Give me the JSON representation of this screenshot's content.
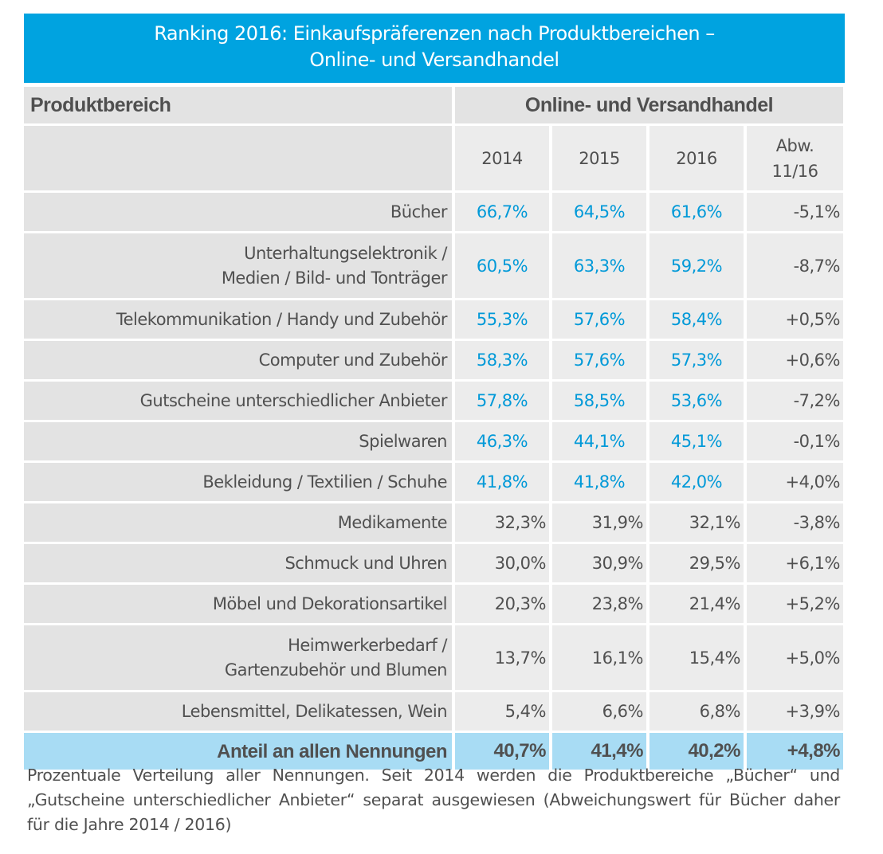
{
  "title_line1": "Ranking 2016: Einkaufspräferenzen nach Produktbereichen –",
  "title_line2": "Online- und Versandhandel",
  "colors": {
    "header": "#00a3e0",
    "highlight_text": "#0099d8",
    "total_row": "#a8dcf4",
    "cell": "#ececec"
  },
  "chart_data": {
    "type": "table",
    "header_left": "Produktbereich",
    "header_group": "Online- und Versandhandel",
    "columns": [
      "2014",
      "2015",
      "2016",
      "Abw. 11/16"
    ],
    "rows": [
      {
        "label": "Bücher",
        "values": [
          "66,7%",
          "64,5%",
          "61,6%",
          "-5,1%"
        ],
        "highlight": true
      },
      {
        "label": "Unterhaltungselektronik / Medien / Bild- und Tonträger",
        "line1": "Unterhaltungselektronik /",
        "line2": "Medien / Bild- und Tonträger",
        "values": [
          "60,5%",
          "63,3%",
          "59,2%",
          "-8,7%"
        ],
        "highlight": true
      },
      {
        "label": "Telekommunikation / Handy und Zubehör",
        "values": [
          "55,3%",
          "57,6%",
          "58,4%",
          "+0,5%"
        ],
        "highlight": true
      },
      {
        "label": "Computer und Zubehör",
        "values": [
          "58,3%",
          "57,6%",
          "57,3%",
          "+0,6%"
        ],
        "highlight": true
      },
      {
        "label": "Gutscheine unterschiedlicher Anbieter",
        "values": [
          "57,8%",
          "58,5%",
          "53,6%",
          "-7,2%"
        ],
        "highlight": true
      },
      {
        "label": "Spielwaren",
        "values": [
          "46,3%",
          "44,1%",
          "45,1%",
          "-0,1%"
        ],
        "highlight": true
      },
      {
        "label": "Bekleidung / Textilien / Schuhe",
        "values": [
          "41,8%",
          "41,8%",
          "42,0%",
          "+4,0%"
        ],
        "highlight": true
      },
      {
        "label": "Medikamente",
        "values": [
          "32,3%",
          "31,9%",
          "32,1%",
          "-3,8%"
        ],
        "highlight": false
      },
      {
        "label": "Schmuck und Uhren",
        "values": [
          "30,0%",
          "30,9%",
          "29,5%",
          "+6,1%"
        ],
        "highlight": false
      },
      {
        "label": "Möbel und Dekorationsartikel",
        "values": [
          "20,3%",
          "23,8%",
          "21,4%",
          "+5,2%"
        ],
        "highlight": false
      },
      {
        "label": "Heimwerkerbedarf / Gartenzubehör und Blumen",
        "line1": "Heimwerkerbedarf /",
        "line2": "Gartenzubehör und Blumen",
        "values": [
          "13,7%",
          "16,1%",
          "15,4%",
          "+5,0%"
        ],
        "highlight": false
      },
      {
        "label": "Lebensmittel, Delikatessen, Wein",
        "values": [
          "5,4%",
          "6,6%",
          "6,8%",
          "+3,9%"
        ],
        "highlight": false
      }
    ],
    "total": {
      "label": "Anteil an allen Nennungen",
      "values": [
        "40,7%",
        "41,4%",
        "40,2%",
        "+4,8%"
      ]
    }
  },
  "footnote": "Prozentuale Verteilung aller Nennungen. Seit 2014 werden die Produktbereiche „Bücher“ und „Gutscheine unterschiedlicher Anbieter“ separat ausgewiesen (Abweichungswert für Bücher daher für die Jahre 2014 / 2016)"
}
